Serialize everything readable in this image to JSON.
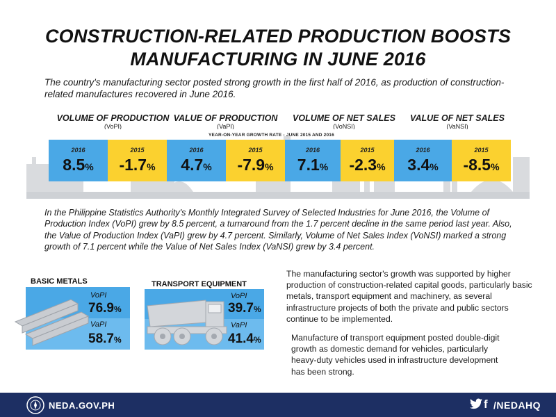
{
  "title_line1": "CONSTRUCTION-RELATED PRODUCTION BOOSTS",
  "title_line2": "MANUFACTURING IN JUNE 2016",
  "intro": "The country's manufacturing sector posted strong growth in the first half of 2016, as production of construction-related manufactures recovered in June 2016.",
  "growth_caption": "YEAR-ON-YEAR GROWTH RATE  - JUNE 2015 AND 2016",
  "indices": [
    {
      "label": "VOLUME OF PRODUCTION",
      "abbr": "(VoPI)",
      "y2016_label": "2016",
      "y2016": "8.5",
      "y2015_label": "2015",
      "y2015": "-1.7"
    },
    {
      "label": "VALUE OF PRODUCTION",
      "abbr": "(VaPI)",
      "y2016_label": "2016",
      "y2016": "4.7",
      "y2015_label": "2015",
      "y2015": "-7.9"
    },
    {
      "label": "VOLUME OF NET SALES",
      "abbr": "(VoNSI)",
      "y2016_label": "2016",
      "y2016": "7.1",
      "y2015_label": "2015",
      "y2015": "-2.3"
    },
    {
      "label": "VALUE OF NET SALES",
      "abbr": "(VaNSI)",
      "y2016_label": "2016",
      "y2016": "3.4",
      "y2015_label": "2015",
      "y2015": "-8.5"
    }
  ],
  "pct": "%",
  "paragraph": "In the Philippine Statistics Authority's Monthly Integrated Survey of Selected Industries for June 2016, the Volume of Production Index (VoPI) grew by 8.5 percent, a turnaround from the 1.7 percent decline in the same period last year. Also, the Value of Production Index (VaPI) grew by 4.7 percent. Similarly, Volume of Net Sales Index (VoNSI) marked a strong growth of 7.1 percent while the Value of Net Sales Index (VaNSI) grew by 3.4 percent.",
  "sectors": [
    {
      "name": "BASIC METALS",
      "vopi_label": "VoPI",
      "vopi": "76.9",
      "vapi_label": "VaPI",
      "vapi": "58.7",
      "icon": "steel-beams-icon"
    },
    {
      "name": "TRANSPORT EQUIPMENT",
      "vopi_label": "VoPI",
      "vopi": "39.7",
      "vapi_label": "VaPI",
      "vapi": "41.4",
      "icon": "dump-truck-icon"
    }
  ],
  "side_text_1": "The manufacturing sector's growth was supported by higher production of construction-related capital goods, particularly basic metals, transport equipment and machinery, as several infrastructure projects of both the private and public sectors continue to be implemented.",
  "side_text_2": "Manufacture of transport equipment posted double-digit growth as domestic demand for vehicles, particularly heavy-duty vehicles used in infrastructure development has been strong.",
  "footer": {
    "website": "NEDA.GOV.PH",
    "social": "/NEDAHQ",
    "fb_glyph": "f"
  },
  "colors": {
    "blue": "#4aa8e6",
    "yellow": "#fbd12f",
    "navy": "#1d2f63",
    "light_blue": "#6dbbee"
  }
}
